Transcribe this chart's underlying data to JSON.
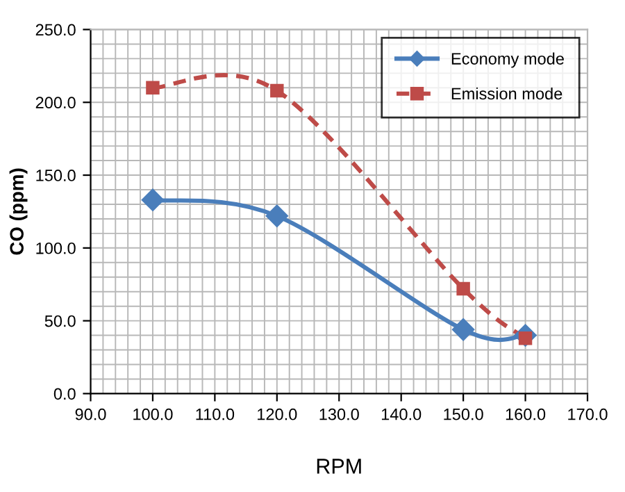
{
  "chart_data": {
    "type": "line",
    "xlabel": "RPM",
    "ylabel": "CO (ppm)",
    "x": [
      100,
      120,
      150,
      160
    ],
    "series": [
      {
        "name": "Economy mode",
        "color": "#4a7ebb",
        "values": [
          133,
          122,
          44,
          40
        ],
        "marker": "diamond",
        "line_style": "solid"
      },
      {
        "name": "Emission mode",
        "color": "#be4b48",
        "values": [
          210,
          208,
          72,
          38
        ],
        "marker": "square",
        "line_style": "dashed"
      }
    ],
    "xlim": [
      90,
      170
    ],
    "xticks": [
      {
        "value": 90,
        "label": "90.0"
      },
      {
        "value": 100,
        "label": "100.0"
      },
      {
        "value": 110,
        "label": "110.0"
      },
      {
        "value": 120,
        "label": "120.0"
      },
      {
        "value": 130,
        "label": "130.0"
      },
      {
        "value": 140,
        "label": "140.0"
      },
      {
        "value": 150,
        "label": "150.0"
      },
      {
        "value": 160,
        "label": "160.0"
      },
      {
        "value": 170,
        "label": "170.0"
      }
    ],
    "ylim": [
      0,
      250
    ],
    "yticks": [
      {
        "value": 0,
        "label": "0.0"
      },
      {
        "value": 50,
        "label": "50.0"
      },
      {
        "value": 100,
        "label": "100.0"
      },
      {
        "value": 150,
        "label": "150.0"
      },
      {
        "value": 200,
        "label": "200.0"
      },
      {
        "value": 250,
        "label": "250.0"
      }
    ],
    "grid": true,
    "legend": "top right"
  }
}
